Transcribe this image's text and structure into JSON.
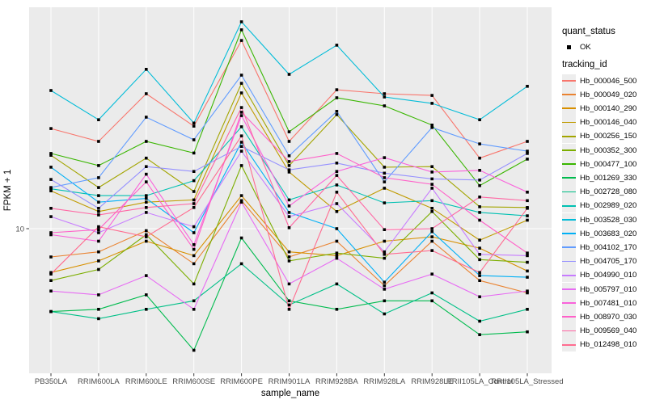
{
  "legend": {
    "quant_status_title": "quant_status",
    "ok_label": "OK",
    "tracking_id_title": "tracking_id"
  },
  "colors": {
    "panel_background": "#EBEBEB",
    "gridline": "#FFFFFF",
    "point": "#000000",
    "tick_text": "#4D4D4D",
    "axis_title_text": "#000000",
    "tick_mark": "#333333",
    "legend_key_background": "#EDEDED"
  },
  "chart_data": {
    "type": "line",
    "title": "",
    "xlabel": "sample_name",
    "ylabel": "FPKM + 1",
    "y_scale": "log10",
    "ylim": [
      2.5,
      90
    ],
    "y_ticks": [
      10
    ],
    "y_tick_labels": [
      "10"
    ],
    "grid": "white major gridlines on gray panel",
    "legend_position": "right",
    "point_shape": "filled-square",
    "categories": [
      "PB350LA",
      "RRIM600LA",
      "RRIM600LE",
      "RRIM600SE",
      "RRIM600PE",
      "RRIM901LA",
      "RRIM928BA",
      "RRIM928LA",
      "RRIM928LE",
      "RRII105LA_Control",
      "RRII105LA_Stressed"
    ],
    "series": [
      {
        "name": "Hb_000046_500",
        "color": "#F8766D",
        "values": [
          27.7,
          24.3,
          39.5,
          28.4,
          67.9,
          24.3,
          41.1,
          39.5,
          38.8,
          20.5,
          24.3
        ]
      },
      {
        "name": "Hb_000049_020",
        "color": "#EA8331",
        "values": [
          7.5,
          7.9,
          9.8,
          7.0,
          13.3,
          7.5,
          8.8,
          5.6,
          8.8,
          5.9,
          5.2
        ]
      },
      {
        "name": "Hb_000140_290",
        "color": "#D89000",
        "values": [
          6.4,
          7.2,
          8.8,
          7.6,
          14.0,
          7.9,
          7.6,
          8.8,
          9.2,
          8.2,
          6.5
        ]
      },
      {
        "name": "Hb_000146_040",
        "color": "#C09B00",
        "values": [
          14.7,
          11.9,
          13.1,
          13.4,
          39.8,
          17.8,
          11.9,
          15.1,
          12.3,
          8.9,
          10.9
        ]
      },
      {
        "name": "Hb_000256_150",
        "color": "#A3A500",
        "values": [
          21.1,
          15.2,
          20.5,
          14.6,
          43.9,
          19.0,
          31.9,
          18.7,
          18.8,
          12.5,
          12.4
        ]
      },
      {
        "name": "Hb_000352_300",
        "color": "#7CAE00",
        "values": [
          5.9,
          6.6,
          9.4,
          5.7,
          19.0,
          7.2,
          7.8,
          7.4,
          11.9,
          7.3,
          7.1
        ]
      },
      {
        "name": "Hb_000477_100",
        "color": "#39B600",
        "values": [
          21.5,
          19.0,
          24.3,
          21.6,
          75.7,
          26.8,
          37.9,
          34.9,
          28.7,
          15.5,
          20.3
        ]
      },
      {
        "name": "Hb_001269_330",
        "color": "#00BB4E",
        "values": [
          4.3,
          4.4,
          5.1,
          2.9,
          9.1,
          4.8,
          4.4,
          4.8,
          4.8,
          3.4,
          3.5
        ]
      },
      {
        "name": "Hb_002728_080",
        "color": "#00C087",
        "values": [
          4.3,
          4.0,
          4.4,
          4.8,
          7.0,
          4.6,
          5.7,
          4.2,
          5.2,
          3.9,
          4.4
        ]
      },
      {
        "name": "Hb_002989_020",
        "color": "#00C0B2",
        "values": [
          15.0,
          14.0,
          14.0,
          16.3,
          28.2,
          13.4,
          15.6,
          13.0,
          13.3,
          11.8,
          11.4
        ]
      },
      {
        "name": "Hb_003528_030",
        "color": "#00BCD8",
        "values": [
          40.8,
          30.3,
          50.6,
          29.3,
          82.1,
          48.1,
          64.7,
          38.2,
          35.8,
          30.3,
          42.6
        ]
      },
      {
        "name": "Hb_003683_020",
        "color": "#00B0F6",
        "values": [
          18.7,
          13.1,
          13.6,
          9.6,
          24.1,
          11.8,
          10.0,
          5.8,
          9.7,
          6.2,
          6.1
        ]
      },
      {
        "name": "Hb_004102_170",
        "color": "#619CFF",
        "values": [
          15.2,
          16.8,
          31.1,
          24.7,
          47.7,
          21.0,
          33.0,
          16.1,
          28.0,
          23.7,
          22.0
        ]
      },
      {
        "name": "Hb_004705_170",
        "color": "#9590FF",
        "values": [
          16.5,
          12.3,
          18.8,
          17.9,
          23.1,
          18.2,
          19.5,
          17.6,
          16.6,
          16.4,
          21.5
        ]
      },
      {
        "name": "Hb_004990_010",
        "color": "#C77CFF",
        "values": [
          11.3,
          9.6,
          11.8,
          10.2,
          22.0,
          11.3,
          12.9,
          7.9,
          15.1,
          7.7,
          7.6
        ]
      },
      {
        "name": "Hb_005797_010",
        "color": "#E76BF3",
        "values": [
          5.3,
          5.1,
          6.2,
          4.4,
          13.1,
          5.7,
          7.4,
          5.4,
          6.3,
          5.0,
          5.3
        ]
      },
      {
        "name": "Hb_007481_010",
        "color": "#FA62DB",
        "values": [
          9.4,
          8.8,
          17.4,
          8.5,
          31.6,
          12.6,
          17.9,
          20.6,
          17.8,
          18.1,
          14.5
        ]
      },
      {
        "name": "Hb_008970_030",
        "color": "#FF61C9",
        "values": [
          9.6,
          9.9,
          16.1,
          8.1,
          32.7,
          19.8,
          21.5,
          16.8,
          15.7,
          10.9,
          7.8
        ]
      },
      {
        "name": "Hb_009569_040",
        "color": "#FF67A4",
        "values": [
          12.3,
          11.5,
          12.4,
          12.9,
          34.3,
          10.1,
          17.2,
          9.9,
          10.0,
          13.8,
          13.3
        ]
      },
      {
        "name": "Hb_012498_010",
        "color": "#FF6C90",
        "values": [
          6.3,
          10.2,
          9.2,
          12.4,
          25.7,
          4.4,
          14.5,
          7.7,
          8.0,
          6.4,
          12.3
        ]
      }
    ]
  }
}
